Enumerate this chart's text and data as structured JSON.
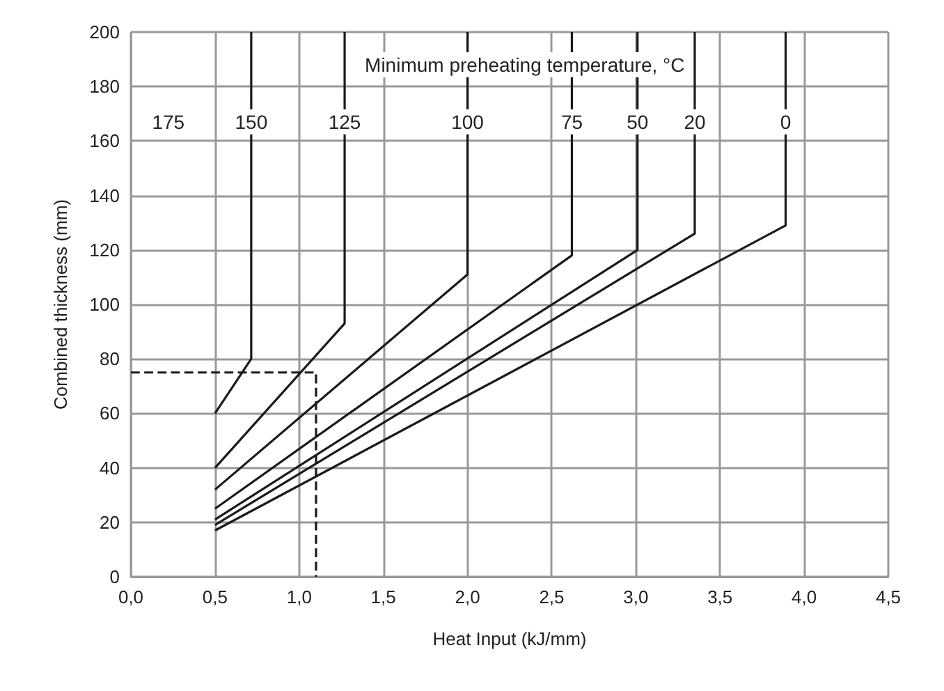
{
  "chart_data": {
    "type": "line",
    "xlabel": "Heat Input (kJ/mm)",
    "ylabel": "Combined thickness (mm)",
    "xlim": [
      0,
      4.5
    ],
    "ylim": [
      0,
      200
    ],
    "xticks": [
      {
        "value": 0,
        "label": "0,0"
      },
      {
        "value": 0.5,
        "label": "0,5"
      },
      {
        "value": 1,
        "label": "1,0"
      },
      {
        "value": 1.5,
        "label": "1,5"
      },
      {
        "value": 2,
        "label": "2,0"
      },
      {
        "value": 2.5,
        "label": "2,5"
      },
      {
        "value": 3,
        "label": "3,0"
      },
      {
        "value": 3.5,
        "label": "3,5"
      },
      {
        "value": 4,
        "label": "4,0"
      },
      {
        "value": 4.5,
        "label": "4,5"
      }
    ],
    "yticks": [
      0,
      20,
      40,
      60,
      80,
      100,
      120,
      140,
      160,
      180,
      200
    ],
    "grid": true,
    "legend": false,
    "marker": "none",
    "annotations": [
      "Minimum preheating temperature, °C",
      "175"
    ],
    "series": [
      {
        "name": "150",
        "color": "#1a1a1a",
        "x": [
          0.5,
          0.715,
          0.715
        ],
        "values": [
          60,
          80,
          200
        ]
      },
      {
        "name": "125",
        "color": "#1a1a1a",
        "x": [
          0.5,
          1.27,
          1.27
        ],
        "values": [
          40,
          93,
          200
        ]
      },
      {
        "name": "100",
        "color": "#1a1a1a",
        "x": [
          0.5,
          2.0,
          2.0
        ],
        "values": [
          32,
          111,
          200
        ]
      },
      {
        "name": "75",
        "color": "#1a1a1a",
        "x": [
          0.5,
          2.62,
          2.62
        ],
        "values": [
          25,
          118,
          200
        ]
      },
      {
        "name": "50",
        "color": "#1a1a1a",
        "x": [
          0.5,
          3.01,
          3.01
        ],
        "values": [
          21,
          120,
          200
        ]
      },
      {
        "name": "20",
        "color": "#1a1a1a",
        "x": [
          0.5,
          3.35,
          3.35
        ],
        "values": [
          19,
          126,
          200
        ]
      },
      {
        "name": "0",
        "color": "#1a1a1a",
        "x": [
          0.5,
          3.89,
          3.89
        ],
        "values": [
          17,
          129,
          200
        ]
      },
      {
        "color": "#1a1a1a",
        "line_style": "dashed",
        "x": [
          0,
          1.1,
          1.1
        ],
        "values": [
          75,
          75,
          0
        ]
      }
    ]
  }
}
